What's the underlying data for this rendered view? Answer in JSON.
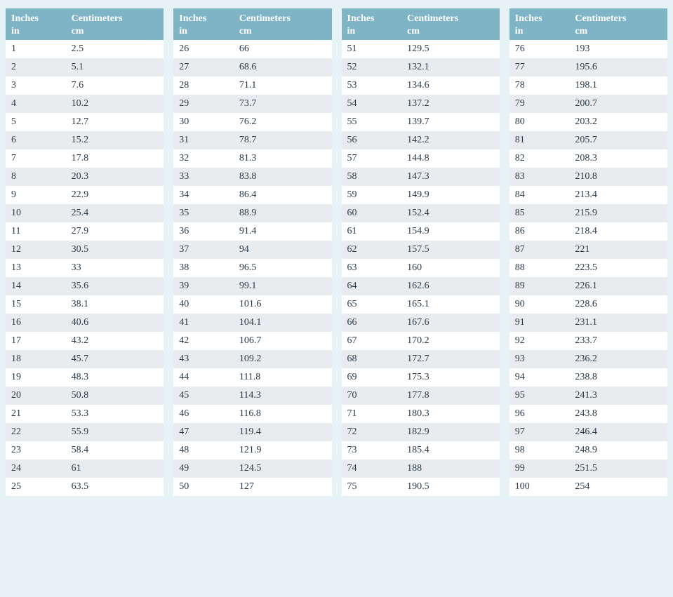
{
  "header": {
    "inches_label": "Inches",
    "inches_unit": "in",
    "cm_label": "Centimeters",
    "cm_unit": "cm"
  },
  "styling": {
    "page_background": "#e6f2f5",
    "header_background": "#7fb4c7",
    "header_text_color": "#ffffff",
    "row_odd_background": "#ffffff",
    "row_even_background": "#e9ecef",
    "cell_text_color": "#2a3a4a",
    "font_family": "Georgia, serif",
    "font_size_pt": 11,
    "num_columns": 4,
    "rows_per_column": 25,
    "col_in_width_pct": 38,
    "col_cm_width_pct": 62
  },
  "columns": [
    {
      "rows": [
        {
          "in": "1",
          "cm": "2.5"
        },
        {
          "in": "2",
          "cm": "5.1"
        },
        {
          "in": "3",
          "cm": "7.6"
        },
        {
          "in": "4",
          "cm": "10.2"
        },
        {
          "in": "5",
          "cm": "12.7"
        },
        {
          "in": "6",
          "cm": "15.2"
        },
        {
          "in": "7",
          "cm": "17.8"
        },
        {
          "in": "8",
          "cm": "20.3"
        },
        {
          "in": "9",
          "cm": "22.9"
        },
        {
          "in": "10",
          "cm": "25.4"
        },
        {
          "in": "11",
          "cm": "27.9"
        },
        {
          "in": "12",
          "cm": "30.5"
        },
        {
          "in": "13",
          "cm": "33"
        },
        {
          "in": "14",
          "cm": "35.6"
        },
        {
          "in": "15",
          "cm": "38.1"
        },
        {
          "in": "16",
          "cm": "40.6"
        },
        {
          "in": "17",
          "cm": "43.2"
        },
        {
          "in": "18",
          "cm": "45.7"
        },
        {
          "in": "19",
          "cm": "48.3"
        },
        {
          "in": "20",
          "cm": "50.8"
        },
        {
          "in": "21",
          "cm": "53.3"
        },
        {
          "in": "22",
          "cm": "55.9"
        },
        {
          "in": "23",
          "cm": "58.4"
        },
        {
          "in": "24",
          "cm": "61"
        },
        {
          "in": "25",
          "cm": "63.5"
        }
      ]
    },
    {
      "rows": [
        {
          "in": "26",
          "cm": "66"
        },
        {
          "in": "27",
          "cm": "68.6"
        },
        {
          "in": "28",
          "cm": "71.1"
        },
        {
          "in": "29",
          "cm": "73.7"
        },
        {
          "in": "30",
          "cm": "76.2"
        },
        {
          "in": "31",
          "cm": "78.7"
        },
        {
          "in": "32",
          "cm": "81.3"
        },
        {
          "in": "33",
          "cm": "83.8"
        },
        {
          "in": "34",
          "cm": "86.4"
        },
        {
          "in": "35",
          "cm": "88.9"
        },
        {
          "in": "36",
          "cm": "91.4"
        },
        {
          "in": "37",
          "cm": "94"
        },
        {
          "in": "38",
          "cm": "96.5"
        },
        {
          "in": "39",
          "cm": "99.1"
        },
        {
          "in": "40",
          "cm": "101.6"
        },
        {
          "in": "41",
          "cm": "104.1"
        },
        {
          "in": "42",
          "cm": "106.7"
        },
        {
          "in": "43",
          "cm": "109.2"
        },
        {
          "in": "44",
          "cm": "111.8"
        },
        {
          "in": "45",
          "cm": "114.3"
        },
        {
          "in": "46",
          "cm": "116.8"
        },
        {
          "in": "47",
          "cm": "119.4"
        },
        {
          "in": "48",
          "cm": "121.9"
        },
        {
          "in": "49",
          "cm": "124.5"
        },
        {
          "in": "50",
          "cm": "127"
        }
      ]
    },
    {
      "rows": [
        {
          "in": "51",
          "cm": "129.5"
        },
        {
          "in": "52",
          "cm": "132.1"
        },
        {
          "in": "53",
          "cm": "134.6"
        },
        {
          "in": "54",
          "cm": "137.2"
        },
        {
          "in": "55",
          "cm": "139.7"
        },
        {
          "in": "56",
          "cm": "142.2"
        },
        {
          "in": "57",
          "cm": "144.8"
        },
        {
          "in": "58",
          "cm": "147.3"
        },
        {
          "in": "59",
          "cm": "149.9"
        },
        {
          "in": "60",
          "cm": "152.4"
        },
        {
          "in": "61",
          "cm": "154.9"
        },
        {
          "in": "62",
          "cm": "157.5"
        },
        {
          "in": "63",
          "cm": "160"
        },
        {
          "in": "64",
          "cm": "162.6"
        },
        {
          "in": "65",
          "cm": "165.1"
        },
        {
          "in": "66",
          "cm": "167.6"
        },
        {
          "in": "67",
          "cm": "170.2"
        },
        {
          "in": "68",
          "cm": "172.7"
        },
        {
          "in": "69",
          "cm": "175.3"
        },
        {
          "in": "70",
          "cm": "177.8"
        },
        {
          "in": "71",
          "cm": "180.3"
        },
        {
          "in": "72",
          "cm": "182.9"
        },
        {
          "in": "73",
          "cm": "185.4"
        },
        {
          "in": "74",
          "cm": "188"
        },
        {
          "in": "75",
          "cm": "190.5"
        }
      ]
    },
    {
      "rows": [
        {
          "in": "76",
          "cm": "193"
        },
        {
          "in": "77",
          "cm": "195.6"
        },
        {
          "in": "78",
          "cm": "198.1"
        },
        {
          "in": "79",
          "cm": "200.7"
        },
        {
          "in": "80",
          "cm": "203.2"
        },
        {
          "in": "81",
          "cm": "205.7"
        },
        {
          "in": "82",
          "cm": "208.3"
        },
        {
          "in": "83",
          "cm": "210.8"
        },
        {
          "in": "84",
          "cm": "213.4"
        },
        {
          "in": "85",
          "cm": "215.9"
        },
        {
          "in": "86",
          "cm": "218.4"
        },
        {
          "in": "87",
          "cm": "221"
        },
        {
          "in": "88",
          "cm": "223.5"
        },
        {
          "in": "89",
          "cm": "226.1"
        },
        {
          "in": "90",
          "cm": "228.6"
        },
        {
          "in": "91",
          "cm": "231.1"
        },
        {
          "in": "92",
          "cm": "233.7"
        },
        {
          "in": "93",
          "cm": "236.2"
        },
        {
          "in": "94",
          "cm": "238.8"
        },
        {
          "in": "95",
          "cm": "241.3"
        },
        {
          "in": "96",
          "cm": "243.8"
        },
        {
          "in": "97",
          "cm": "246.4"
        },
        {
          "in": "98",
          "cm": "248.9"
        },
        {
          "in": "99",
          "cm": "251.5"
        },
        {
          "in": "100",
          "cm": "254"
        }
      ]
    }
  ]
}
